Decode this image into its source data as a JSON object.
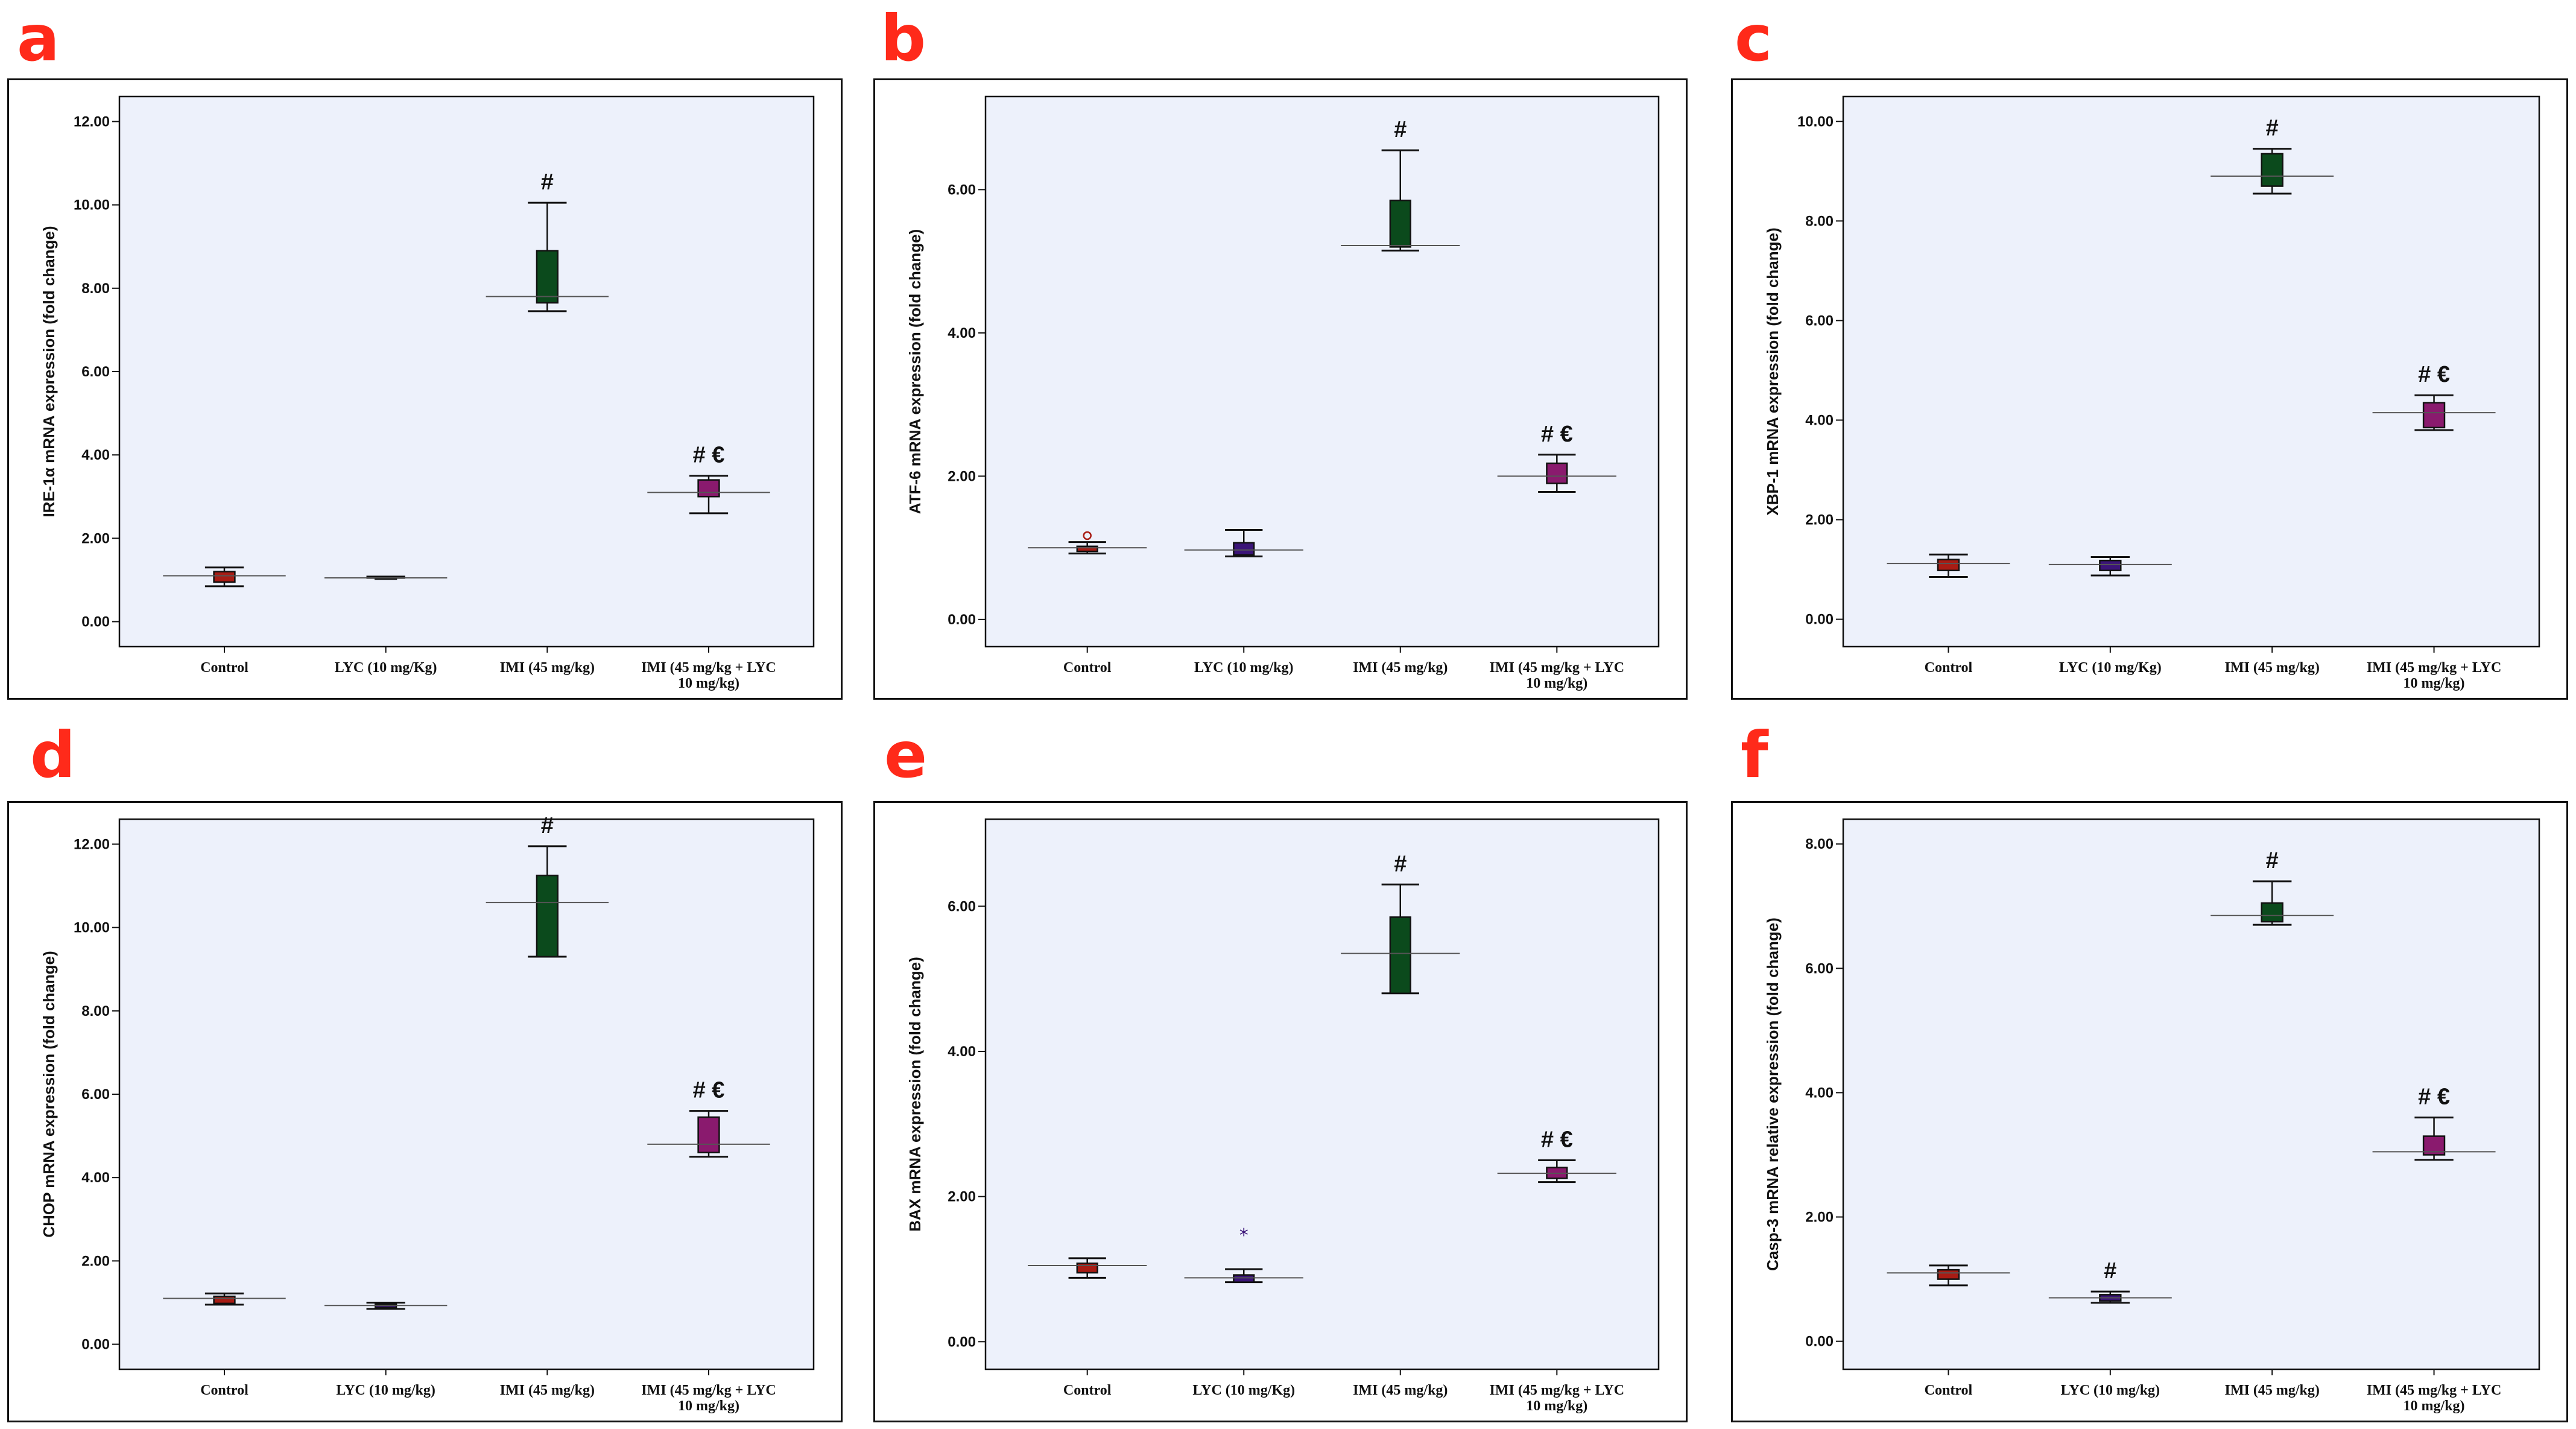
{
  "colors": {
    "letter": "#ff2a1a",
    "plot_bg": "#edf1fb",
    "control": "#a81c14",
    "lyc": "#3b1478",
    "imi": "#0b4a1c",
    "combo": "#8a1a6e",
    "ink": "#111111"
  },
  "chart_data": [
    {
      "panel": "a",
      "type": "boxplot",
      "ylabel": "IRE-1α mRNA expression (fold change)",
      "ylim": [
        -0.6,
        12.6
      ],
      "yticks": [
        0,
        2,
        4,
        6,
        8,
        10,
        12
      ],
      "ytick_labels": [
        "0.00",
        "2.00",
        "4.00",
        "6.00",
        "8.00",
        "10.00",
        "12.00"
      ],
      "categories": [
        "Control",
        "LYC (10 mg/Kg)",
        "IMI (45 mg/kg)",
        "IMI (45 mg/kg + LYC 10 mg/kg)"
      ],
      "boxes": [
        {
          "min": 0.85,
          "q1": 0.95,
          "median": 1.1,
          "q3": 1.2,
          "max": 1.3,
          "annotation": ""
        },
        {
          "min": 1.05,
          "q1": 1.05,
          "median": 1.05,
          "q3": 1.08,
          "max": 1.08,
          "annotation": ""
        },
        {
          "min": 7.45,
          "q1": 7.65,
          "median": 7.8,
          "q3": 8.9,
          "max": 10.05,
          "annotation": "#"
        },
        {
          "min": 2.6,
          "q1": 3.0,
          "median": 3.1,
          "q3": 3.4,
          "max": 3.5,
          "annotation": "# €"
        }
      ],
      "outliers": []
    },
    {
      "panel": "b",
      "type": "boxplot",
      "ylabel": "ATF-6 mRNA expression (fold change)",
      "ylim": [
        -0.38,
        7.3
      ],
      "yticks": [
        0,
        2,
        4,
        6
      ],
      "ytick_labels": [
        "0.00",
        "2.00",
        "4.00",
        "6.00"
      ],
      "categories": [
        "Control",
        "LYC (10 mg/kg)",
        "IMI (45 mg/kg)",
        "IMI (45 mg/kg + LYC 10 mg/kg)"
      ],
      "boxes": [
        {
          "min": 0.92,
          "q1": 0.95,
          "median": 1.0,
          "q3": 1.02,
          "max": 1.08,
          "annotation": ""
        },
        {
          "min": 0.88,
          "q1": 0.9,
          "median": 0.97,
          "q3": 1.07,
          "max": 1.25,
          "annotation": ""
        },
        {
          "min": 5.15,
          "q1": 5.2,
          "median": 5.22,
          "q3": 5.85,
          "max": 6.55,
          "annotation": "#"
        },
        {
          "min": 1.78,
          "q1": 1.9,
          "median": 2.0,
          "q3": 2.18,
          "max": 2.3,
          "annotation": "# €"
        }
      ],
      "outliers": [
        {
          "group": 0,
          "value": 1.17,
          "marker": "o"
        }
      ]
    },
    {
      "panel": "c",
      "type": "boxplot",
      "ylabel": "XBP-1 mRNA expression (fold change)",
      "ylim": [
        -0.55,
        10.5
      ],
      "yticks": [
        0,
        2,
        4,
        6,
        8,
        10
      ],
      "ytick_labels": [
        "0.00",
        "2.00",
        "4.00",
        "6.00",
        "8.00",
        "10.00"
      ],
      "categories": [
        "Control",
        "LYC (10 mg/Kg)",
        "IMI (45 mg/kg)",
        "IMI (45 mg/kg + LYC 10 mg/kg)"
      ],
      "boxes": [
        {
          "min": 0.85,
          "q1": 0.98,
          "median": 1.12,
          "q3": 1.2,
          "max": 1.3,
          "annotation": ""
        },
        {
          "min": 0.88,
          "q1": 0.98,
          "median": 1.1,
          "q3": 1.18,
          "max": 1.25,
          "annotation": ""
        },
        {
          "min": 8.55,
          "q1": 8.7,
          "median": 8.9,
          "q3": 9.35,
          "max": 9.45,
          "annotation": "#"
        },
        {
          "min": 3.8,
          "q1": 3.85,
          "median": 4.15,
          "q3": 4.35,
          "max": 4.5,
          "annotation": "# €"
        }
      ],
      "outliers": []
    },
    {
      "panel": "d",
      "type": "boxplot",
      "ylabel": "CHOP mRNA expression (fold change)",
      "ylim": [
        -0.6,
        12.6
      ],
      "yticks": [
        0,
        2,
        4,
        6,
        8,
        10,
        12
      ],
      "ytick_labels": [
        "0.00",
        "2.00",
        "4.00",
        "6.00",
        "8.00",
        "10.00",
        "12.00"
      ],
      "categories": [
        "Control",
        "LYC (10 mg/kg)",
        "IMI (45 mg/kg)",
        "IMI (45 mg/kg + LYC 10 mg/kg)"
      ],
      "boxes": [
        {
          "min": 0.95,
          "q1": 0.98,
          "median": 1.1,
          "q3": 1.15,
          "max": 1.22,
          "annotation": ""
        },
        {
          "min": 0.85,
          "q1": 0.88,
          "median": 0.93,
          "q3": 0.96,
          "max": 1.0,
          "annotation": ""
        },
        {
          "min": 9.3,
          "q1": 9.3,
          "median": 10.6,
          "q3": 11.25,
          "max": 11.95,
          "annotation": "#"
        },
        {
          "min": 4.5,
          "q1": 4.6,
          "median": 4.8,
          "q3": 5.45,
          "max": 5.6,
          "annotation": "# €"
        }
      ],
      "outliers": []
    },
    {
      "panel": "e",
      "type": "boxplot",
      "ylabel": "BAX mRNA expression (fold change)",
      "ylim": [
        -0.38,
        7.2
      ],
      "yticks": [
        0,
        2,
        4,
        6
      ],
      "ytick_labels": [
        "0.00",
        "2.00",
        "4.00",
        "6.00"
      ],
      "categories": [
        "Control",
        "LYC (10 mg/Kg)",
        "IMI (45 mg/kg)",
        "IMI (45 mg/kg + LYC 10 mg/kg)"
      ],
      "boxes": [
        {
          "min": 0.88,
          "q1": 0.95,
          "median": 1.05,
          "q3": 1.08,
          "max": 1.15,
          "annotation": ""
        },
        {
          "min": 0.82,
          "q1": 0.82,
          "median": 0.88,
          "q3": 0.92,
          "max": 1.0,
          "annotation": ""
        },
        {
          "min": 4.8,
          "q1": 4.8,
          "median": 5.35,
          "q3": 5.85,
          "max": 6.3,
          "annotation": "#"
        },
        {
          "min": 2.2,
          "q1": 2.25,
          "median": 2.32,
          "q3": 2.4,
          "max": 2.5,
          "annotation": "# €"
        }
      ],
      "outliers": [
        {
          "group": 1,
          "value": 1.48,
          "marker": "*"
        }
      ]
    },
    {
      "panel": "f",
      "type": "boxplot",
      "ylabel": "Casp-3 mRNA relative expression (fold change)",
      "ylim": [
        -0.45,
        8.4
      ],
      "yticks": [
        0,
        2,
        4,
        6,
        8
      ],
      "ytick_labels": [
        "0.00",
        "2.00",
        "4.00",
        "6.00",
        "8.00"
      ],
      "categories": [
        "Control",
        "LYC (10 mg/kg)",
        "IMI (45 mg/kg)",
        "IMI (45 mg/kg + LYC 10 mg/kg)"
      ],
      "boxes": [
        {
          "min": 0.9,
          "q1": 1.0,
          "median": 1.1,
          "q3": 1.15,
          "max": 1.22,
          "annotation": ""
        },
        {
          "min": 0.62,
          "q1": 0.65,
          "median": 0.7,
          "q3": 0.75,
          "max": 0.8,
          "annotation": "#"
        },
        {
          "min": 6.7,
          "q1": 6.75,
          "median": 6.85,
          "q3": 7.05,
          "max": 7.4,
          "annotation": "#"
        },
        {
          "min": 2.92,
          "q1": 3.0,
          "median": 3.05,
          "q3": 3.3,
          "max": 3.6,
          "annotation": "# €"
        }
      ],
      "outliers": []
    }
  ]
}
